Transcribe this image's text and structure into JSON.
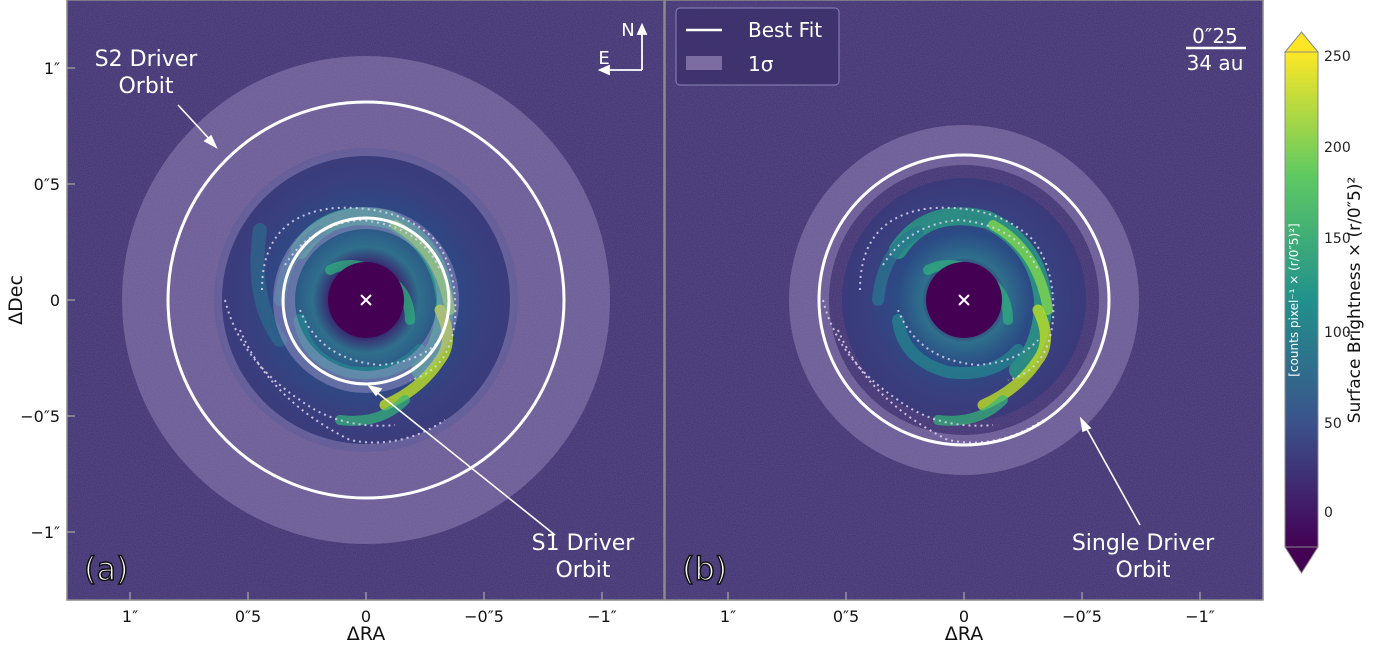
{
  "figure": {
    "ylabel": "ΔDec",
    "xlabel": "ΔRA",
    "colorbar_label": "Surface Brightness × (r/0″5)²",
    "colorbar_sublabel": "[counts pixel⁻¹ × (r/0″5)²]",
    "colorbar_ticks": [
      "250",
      "200",
      "150",
      "100",
      "50",
      "0"
    ],
    "colorbar_colors": [
      "#440154",
      "#3b528b",
      "#21918c",
      "#5ec962",
      "#fde725"
    ],
    "x_ticks": [
      "1″",
      "0″5",
      "0",
      "−0″5",
      "−1″"
    ],
    "y_ticks": [
      "1″",
      "0″5",
      "0",
      "−0″5",
      "−1″"
    ],
    "compass": {
      "north": "N",
      "east": "E"
    },
    "legend": {
      "best_fit": "Best Fit",
      "sigma": "1σ"
    },
    "scalebar": {
      "angular": "0″25",
      "physical": "34 au"
    },
    "panels": [
      {
        "id": "a",
        "label": "(a)",
        "annotations": [
          {
            "line1": "S2 Driver",
            "line2": "Orbit"
          },
          {
            "line1": "S1 Driver",
            "line2": "Orbit"
          }
        ]
      },
      {
        "id": "b",
        "label": "(b)",
        "annotations": [
          {
            "line1": "Single Driver",
            "line2": "Orbit"
          }
        ]
      }
    ]
  },
  "chart_data": {
    "type": "heatmap",
    "description_units": "arcsec offsets; colour scale in counts pixel⁻¹ × (r/0″5)²",
    "xlabel": "ΔRA",
    "ylabel": "ΔDec",
    "xlim": [
      1.3,
      -1.3
    ],
    "ylim": [
      -1.3,
      1.3
    ],
    "colorbar_range": [
      -20,
      260
    ],
    "colorbar_ticks": [
      0,
      50,
      100,
      150,
      200,
      250
    ],
    "panels": [
      {
        "label": "(a)",
        "orbits": [
          {
            "name": "S2 Driver Orbit",
            "radius_arcsec": 0.86,
            "sigma_inner": 0.45,
            "sigma_outer": 1.1
          },
          {
            "name": "S1 Driver Orbit",
            "radius_arcsec": 0.35,
            "sigma_inner": 0.28,
            "sigma_outer": 0.42,
            "center_offset_ra": -0.02
          }
        ]
      },
      {
        "label": "(b)",
        "orbits": [
          {
            "name": "Single Driver Orbit",
            "radius_arcsec": 0.62,
            "sigma_inner": 0.52,
            "sigma_outer": 0.76
          }
        ]
      }
    ]
  }
}
